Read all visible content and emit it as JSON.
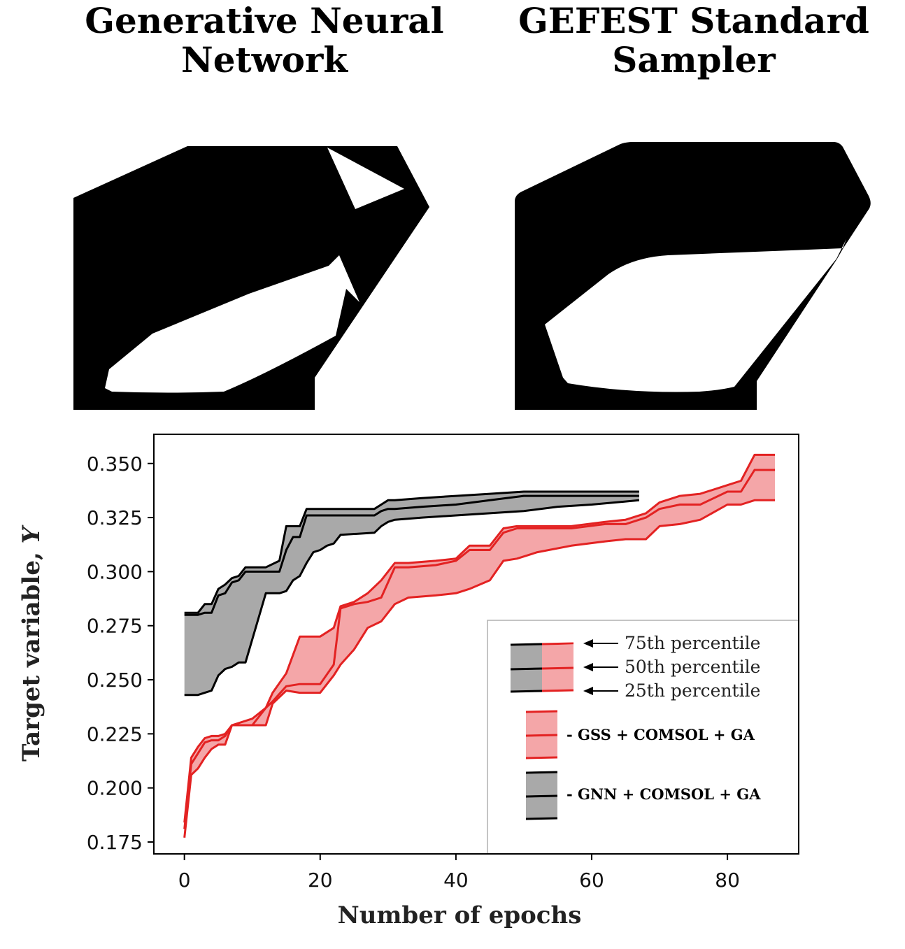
{
  "headings": {
    "left": [
      "Generative Neural",
      "Network"
    ],
    "right": [
      "GEFEST Standard",
      "Sampler"
    ]
  },
  "colors": {
    "gnn_line": "#000000",
    "gnn_fill": "#a9a9a9",
    "gss_line": "#e32222",
    "gss_fill": "#f4a6a8"
  },
  "chart_data": {
    "type": "area",
    "xlabel": "Number of epochs",
    "ylabel_main": "Target variable, ",
    "ylabel_var": "Y",
    "xlim": [
      -4.5,
      90.5
    ],
    "ylim": [
      0.1695,
      0.3635
    ],
    "xticks": [
      0,
      20,
      40,
      60,
      80
    ],
    "yticks": [
      0.175,
      0.2,
      0.225,
      0.25,
      0.275,
      0.3,
      0.325,
      0.35
    ],
    "ytick_labels": [
      "0.175",
      "0.200",
      "0.225",
      "0.250",
      "0.275",
      "0.300",
      "0.325",
      "0.350"
    ],
    "grid": false,
    "legend": {
      "placement": "lower-right",
      "percentiles": [
        "75th percentile",
        "50th percentile",
        "25th percentile"
      ],
      "series_labels": [
        "- GSS + COMSOL + GA",
        "-  GNN + COMSOL + GA"
      ]
    },
    "series": [
      {
        "name": "GNN + COMSOL + GA",
        "x": [
          0,
          2,
          3,
          4,
          5,
          6,
          7,
          8,
          9,
          12,
          14,
          15,
          16,
          17,
          18,
          19,
          20,
          21,
          22,
          23,
          28,
          29,
          30,
          31,
          35,
          40,
          45,
          50,
          55,
          60,
          67
        ],
        "p75": [
          0.281,
          0.281,
          0.285,
          0.285,
          0.292,
          0.294,
          0.297,
          0.298,
          0.302,
          0.302,
          0.305,
          0.321,
          0.321,
          0.321,
          0.329,
          0.329,
          0.329,
          0.329,
          0.329,
          0.329,
          0.329,
          0.331,
          0.333,
          0.333,
          0.334,
          0.335,
          0.336,
          0.337,
          0.337,
          0.337,
          0.337
        ],
        "p50": [
          0.28,
          0.28,
          0.281,
          0.281,
          0.289,
          0.29,
          0.295,
          0.296,
          0.3,
          0.3,
          0.3,
          0.31,
          0.316,
          0.316,
          0.326,
          0.326,
          0.326,
          0.326,
          0.326,
          0.326,
          0.326,
          0.328,
          0.329,
          0.329,
          0.33,
          0.331,
          0.333,
          0.335,
          0.335,
          0.335,
          0.335
        ],
        "p25": [
          0.243,
          0.243,
          0.244,
          0.245,
          0.252,
          0.255,
          0.256,
          0.258,
          0.258,
          0.29,
          0.29,
          0.291,
          0.296,
          0.298,
          0.304,
          0.309,
          0.31,
          0.312,
          0.313,
          0.317,
          0.318,
          0.321,
          0.323,
          0.324,
          0.325,
          0.326,
          0.327,
          0.328,
          0.33,
          0.331,
          0.333
        ]
      },
      {
        "name": "GSS + COMSOL + GA",
        "x": [
          0,
          1,
          2,
          3,
          4,
          5,
          6,
          7,
          10,
          12,
          13,
          15,
          17,
          20,
          22,
          23,
          25,
          27,
          29,
          31,
          33,
          37,
          40,
          42,
          45,
          47,
          49,
          52,
          57,
          62,
          65,
          68,
          70,
          73,
          76,
          80,
          82,
          84,
          87
        ],
        "p75": [
          0.184,
          0.214,
          0.219,
          0.223,
          0.224,
          0.224,
          0.225,
          0.229,
          0.232,
          0.237,
          0.244,
          0.253,
          0.27,
          0.27,
          0.274,
          0.284,
          0.286,
          0.29,
          0.296,
          0.304,
          0.304,
          0.305,
          0.306,
          0.312,
          0.312,
          0.32,
          0.321,
          0.321,
          0.321,
          0.323,
          0.324,
          0.327,
          0.332,
          0.335,
          0.336,
          0.34,
          0.342,
          0.354,
          0.354
        ],
        "p50": [
          0.181,
          0.211,
          0.216,
          0.221,
          0.222,
          0.222,
          0.224,
          0.229,
          0.229,
          0.237,
          0.24,
          0.247,
          0.248,
          0.248,
          0.257,
          0.283,
          0.285,
          0.286,
          0.288,
          0.302,
          0.302,
          0.303,
          0.305,
          0.31,
          0.31,
          0.318,
          0.32,
          0.32,
          0.32,
          0.322,
          0.322,
          0.325,
          0.329,
          0.331,
          0.331,
          0.337,
          0.337,
          0.347,
          0.347
        ],
        "p25": [
          0.177,
          0.206,
          0.209,
          0.214,
          0.218,
          0.22,
          0.22,
          0.229,
          0.229,
          0.229,
          0.239,
          0.245,
          0.244,
          0.244,
          0.252,
          0.257,
          0.264,
          0.274,
          0.277,
          0.285,
          0.288,
          0.289,
          0.29,
          0.292,
          0.296,
          0.305,
          0.306,
          0.309,
          0.312,
          0.314,
          0.315,
          0.315,
          0.321,
          0.322,
          0.324,
          0.331,
          0.331,
          0.333,
          0.333
        ]
      }
    ]
  }
}
